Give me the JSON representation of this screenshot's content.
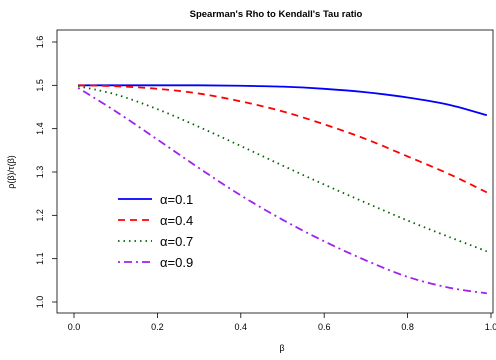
{
  "chart_data": {
    "type": "line",
    "title": "Spearman's Rho to Kendall's Tau ratio",
    "xlabel": "β",
    "ylabel": "ρ(β)/τ(β)",
    "xlim": [
      0.0,
      1.0
    ],
    "ylim": [
      1.0,
      1.6
    ],
    "x_ticks": [
      "0.0",
      "0.2",
      "0.4",
      "0.6",
      "0.8",
      "1.0"
    ],
    "y_ticks": [
      "1.0",
      "1.1",
      "1.2",
      "1.3",
      "1.4",
      "1.5",
      "1.6"
    ],
    "grid": false,
    "legend_position": "left-center",
    "x": [
      0.01,
      0.1,
      0.2,
      0.3,
      0.4,
      0.5,
      0.6,
      0.7,
      0.8,
      0.9,
      0.99
    ],
    "series": [
      {
        "name": "α=0.1",
        "color": "#0000ff",
        "dash": "solid",
        "values": [
          1.5,
          1.5,
          1.5,
          1.5,
          1.499,
          1.497,
          1.492,
          1.484,
          1.472,
          1.455,
          1.431
        ]
      },
      {
        "name": "α=0.4",
        "color": "#ff0000",
        "dash": "dashed",
        "values": [
          1.5,
          1.498,
          1.492,
          1.481,
          1.463,
          1.44,
          1.41,
          1.376,
          1.336,
          1.295,
          1.253
        ]
      },
      {
        "name": "α=0.7",
        "color": "#006400",
        "dash": "dotted",
        "values": [
          1.498,
          1.479,
          1.445,
          1.404,
          1.36,
          1.315,
          1.271,
          1.229,
          1.188,
          1.15,
          1.117
        ]
      },
      {
        "name": "α=0.9",
        "color": "#a020f0",
        "dash": "dashdot",
        "values": [
          1.494,
          1.44,
          1.375,
          1.309,
          1.246,
          1.19,
          1.14,
          1.096,
          1.058,
          1.033,
          1.02
        ]
      }
    ]
  }
}
